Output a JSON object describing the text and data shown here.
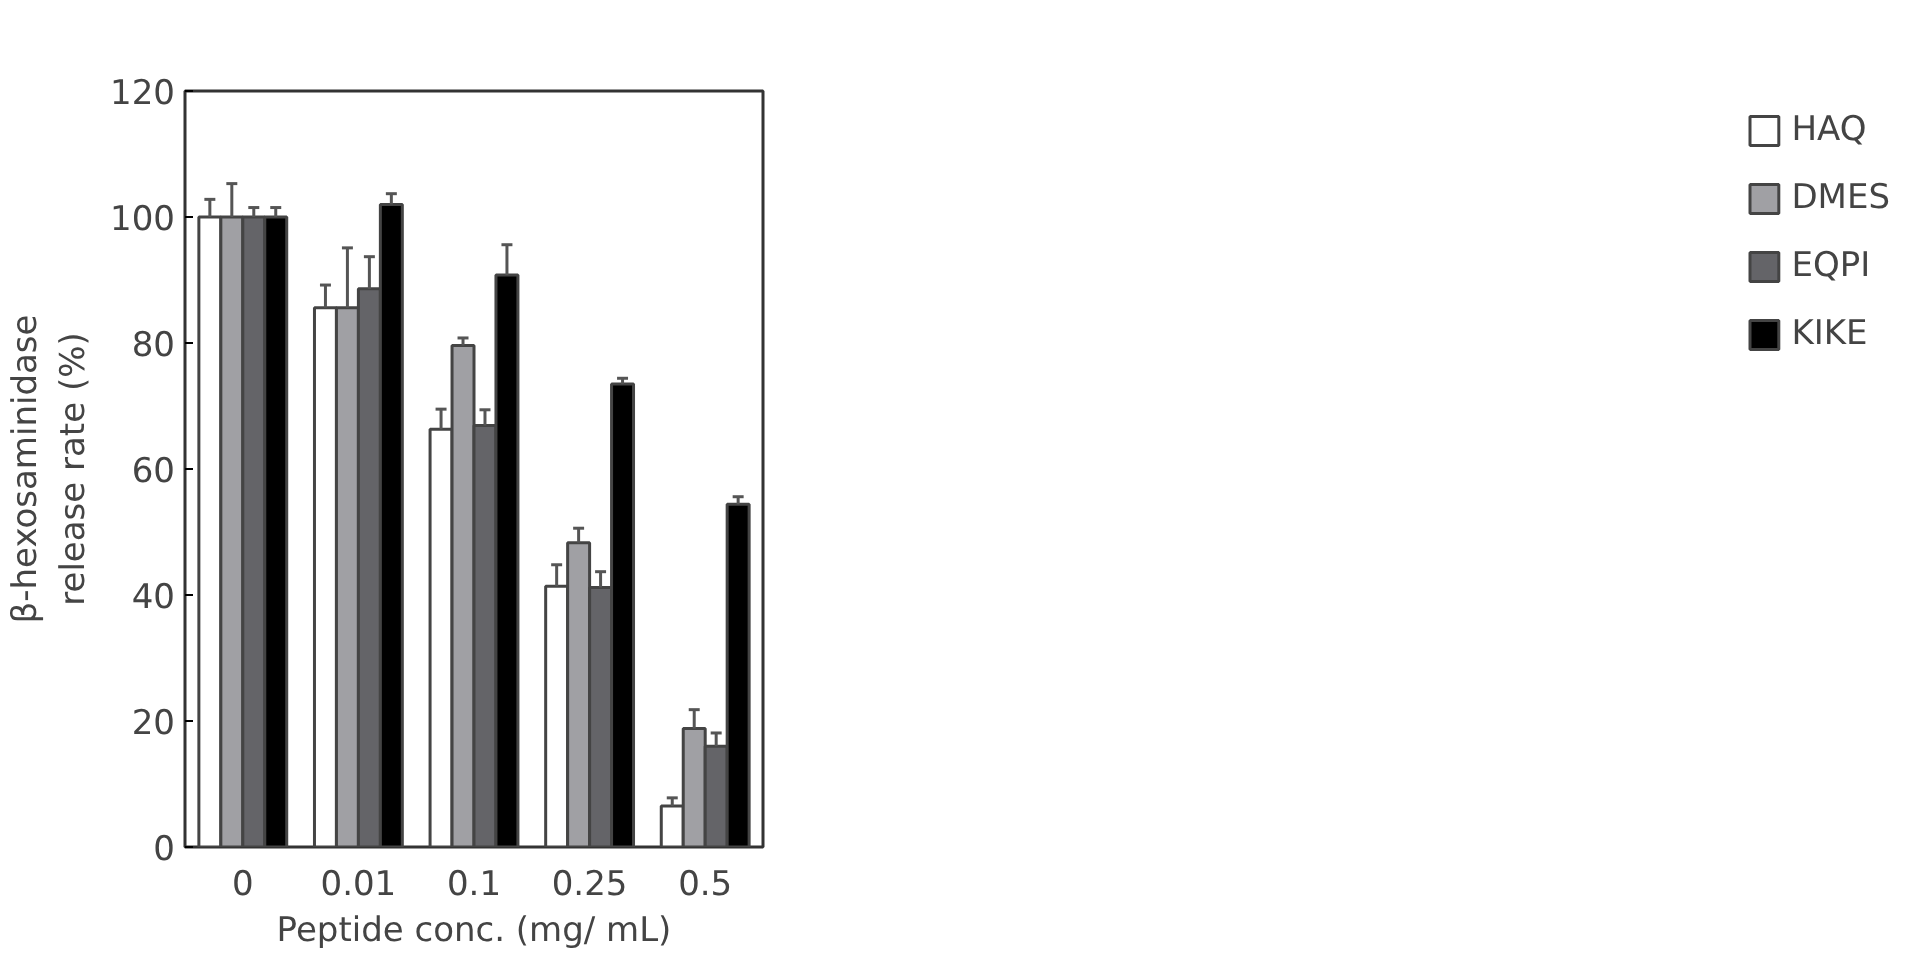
{
  "chart_data": {
    "type": "bar",
    "xlabel": "Peptide conc. (mg/ mL)",
    "ylabel": "β-hexosaminidase\nrelease rate (%)",
    "categories": [
      "0",
      "0.01",
      "0.1",
      "0.25",
      "0.5"
    ],
    "series": [
      {
        "name": "HAQ",
        "color": "#ffffff",
        "values": [
          100,
          85.6,
          66.3,
          41.4,
          6.5
        ],
        "errors": [
          [
            100,
            102.8
          ],
          [
            85.6,
            89.2
          ],
          [
            66.3,
            69.5
          ],
          [
            41.4,
            44.8
          ],
          [
            6.5,
            7.8
          ]
        ]
      },
      {
        "name": "DMES",
        "color": "#a0a0a4",
        "values": [
          100,
          85.6,
          79.6,
          48.3,
          18.8
        ],
        "errors": [
          [
            100,
            105.3
          ],
          [
            85.6,
            95.1
          ],
          [
            79.6,
            80.8
          ],
          [
            48.3,
            50.6
          ],
          [
            18.8,
            21.8
          ]
        ]
      },
      {
        "name": "EQPI",
        "color": "#646468",
        "values": [
          100,
          88.6,
          66.9,
          41.2,
          16
        ],
        "errors": [
          [
            100,
            101.5
          ],
          [
            88.6,
            93.7
          ],
          [
            66.9,
            69.4
          ],
          [
            41.2,
            43.7
          ],
          [
            16,
            18.1
          ]
        ]
      },
      {
        "name": "KIKE",
        "color": "#000000",
        "values": [
          100,
          102,
          90.8,
          73.5,
          54.4
        ],
        "errors": [
          [
            100,
            101.5
          ],
          [
            102,
            103.7
          ],
          [
            90.8,
            95.6
          ],
          [
            73.5,
            74.4
          ],
          [
            54.4,
            55.6
          ]
        ]
      }
    ],
    "ylim": [
      0,
      120
    ],
    "yticks": [
      0,
      20,
      40,
      60,
      80,
      100,
      120
    ],
    "grid": false,
    "legend": "right"
  }
}
